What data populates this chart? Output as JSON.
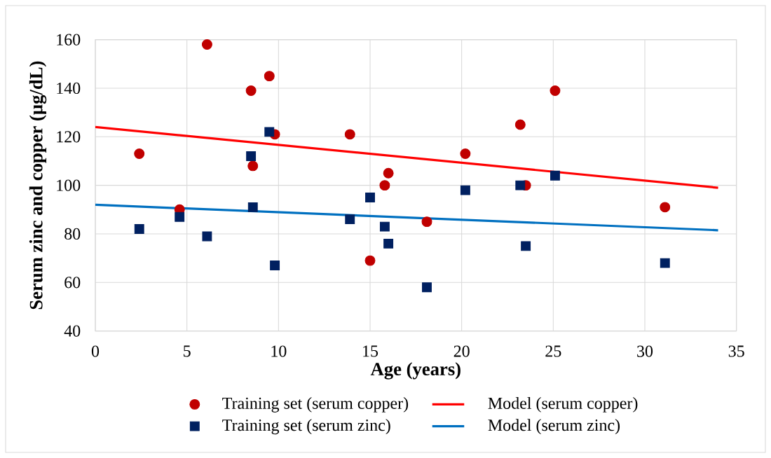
{
  "chart_data": {
    "type": "scatter",
    "xlabel": "Age (years)",
    "ylabel": "Serum zinc and copper (µg/dL)",
    "xlim": [
      0,
      35
    ],
    "ylim": [
      40,
      160
    ],
    "xticks": [
      0,
      5,
      10,
      15,
      20,
      25,
      30,
      35
    ],
    "yticks": [
      40,
      60,
      80,
      100,
      120,
      140,
      160
    ],
    "grid": true,
    "legend": "bottom",
    "series": [
      {
        "name": "Training set (serum copper)",
        "marker": "circle",
        "color": "#c00000",
        "x": [
          2.4,
          4.6,
          6.1,
          8.5,
          8.6,
          9.5,
          9.8,
          13.9,
          15.0,
          15.8,
          16.0,
          18.1,
          20.2,
          23.2,
          23.5,
          25.1,
          31.1
        ],
        "values": [
          113,
          90,
          158,
          139,
          108,
          145,
          121,
          121,
          69,
          100,
          105,
          85,
          113,
          125,
          100,
          139,
          91
        ]
      },
      {
        "name": "Model (serum copper)",
        "type": "line",
        "marker": "none",
        "color": "#ff0000",
        "x": [
          0,
          34
        ],
        "values": [
          124,
          99
        ]
      },
      {
        "name": "Training set (serum zinc)",
        "marker": "square",
        "color": "#002060",
        "x": [
          2.4,
          4.6,
          6.1,
          8.5,
          8.6,
          9.5,
          9.8,
          13.9,
          15.0,
          15.8,
          16.0,
          18.1,
          20.2,
          23.2,
          23.5,
          25.1,
          31.1
        ],
        "values": [
          82,
          87,
          79,
          112,
          91,
          122,
          67,
          86,
          95,
          83,
          76,
          58,
          98,
          100,
          75,
          104,
          68
        ]
      },
      {
        "name": "Model (serum zinc)",
        "type": "line",
        "marker": "none",
        "color": "#0070c0",
        "x": [
          0,
          34
        ],
        "values": [
          92,
          81.5
        ]
      }
    ]
  }
}
